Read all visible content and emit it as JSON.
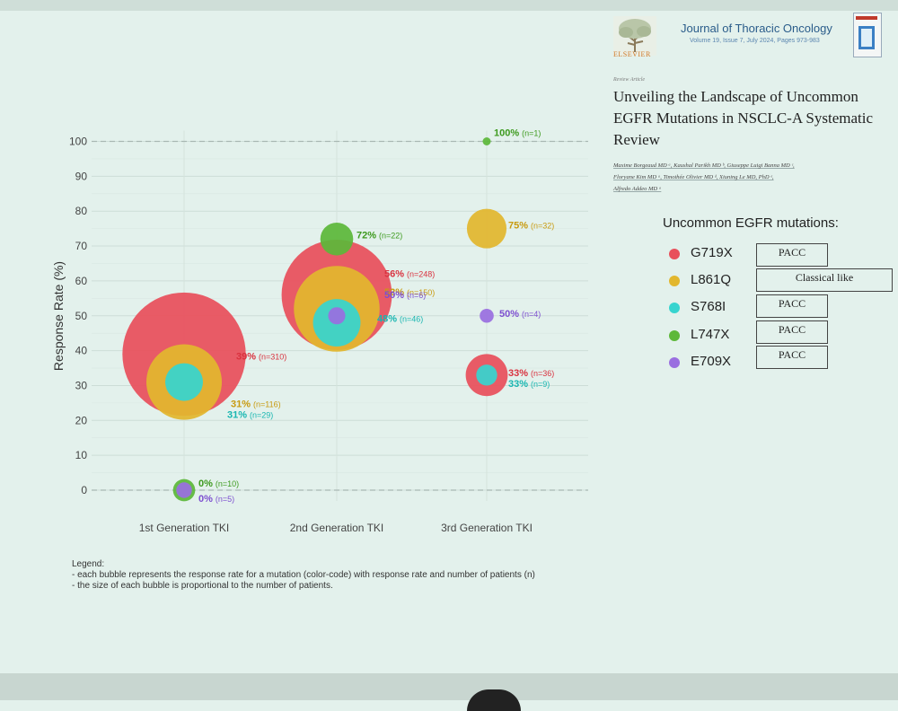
{
  "journal": {
    "logo_icon": "elsevier-tree-icon",
    "publisher": "ELSEVIER",
    "name": "Journal of Thoracic Oncology",
    "volume_line": "Volume 19, Issue 7, July 2024, Pages 973-983"
  },
  "article": {
    "type": "Review Article",
    "title": "Unveiling the Landscape of Uncommon EGFR Mutations in NSCLC-A Systematic Review",
    "authors_line1": "Maxime Borgeaud MD ᵃ, Kaushal Parikh MD ᵇ, Giuseppe Luigi Banna MD ᶜ,",
    "authors_line2": "Floryane Kim MD ᵃ, Timothée Olivier MD ᵈ, Xiuning Le MD, PhD ᵉ,",
    "authors_line3": "Alfredo Addeo MD ᵃ"
  },
  "mutation_key": {
    "title": "Uncommon EGFR mutations:",
    "items": [
      {
        "name": "G719X",
        "color": "#e8505b",
        "class": "PACC"
      },
      {
        "name": "L861Q",
        "color": "#e2b72e",
        "class": "Classical like"
      },
      {
        "name": "S768I",
        "color": "#37d4cf",
        "class": "PACC"
      },
      {
        "name": "L747X",
        "color": "#5db83a",
        "class": "PACC"
      },
      {
        "name": "E709X",
        "color": "#9a6fe0",
        "class": "PACC"
      }
    ]
  },
  "legend_note": {
    "line1": "Legend:",
    "line2": "- each bubble represents the response rate for a mutation (color-code) with response rate and number of patients (n)",
    "line3": "- the size of each bubble is proportional to the number of patients."
  },
  "chart_data": {
    "type": "scatter",
    "subtype": "bubble",
    "ylabel": "Response Rate (%)",
    "xlabel": "",
    "categories": [
      "1st Generation TKI",
      "2nd Generation TKI",
      "3rd Generation TKI"
    ],
    "ylim": [
      0,
      100
    ],
    "yticks": [
      "0",
      "10",
      "20",
      "30",
      "40",
      "50",
      "60",
      "70",
      "80",
      "90",
      "100"
    ],
    "grid": true,
    "bubble_size": "proportional to number of patients",
    "series": [
      {
        "mutation": "G719X",
        "color": "#e8505b",
        "points": [
          {
            "category": "1st Generation TKI",
            "y": 39,
            "n": 310,
            "label": "39%",
            "n_label": "(n=310)"
          },
          {
            "category": "2nd Generation TKI",
            "y": 56,
            "n": 248,
            "label": "56%",
            "n_label": "(n=248)"
          },
          {
            "category": "3rd Generation TKI",
            "y": 33,
            "n": 36,
            "label": "33%",
            "n_label": "(n=36)"
          }
        ]
      },
      {
        "mutation": "L861Q",
        "color": "#e2b72e",
        "points": [
          {
            "category": "1st Generation TKI",
            "y": 31,
            "n": 116,
            "label": "31%",
            "n_label": "(n=116)"
          },
          {
            "category": "2nd Generation TKI",
            "y": 52,
            "n": 150,
            "label": "52%",
            "n_label": "(n=150)"
          },
          {
            "category": "3rd Generation TKI",
            "y": 75,
            "n": 32,
            "label": "75%",
            "n_label": "(n=32)"
          }
        ]
      },
      {
        "mutation": "S768I",
        "color": "#37d4cf",
        "points": [
          {
            "category": "1st Generation TKI",
            "y": 31,
            "n": 29,
            "label": "31%",
            "n_label": "(n=29)"
          },
          {
            "category": "2nd Generation TKI",
            "y": 48,
            "n": 46,
            "label": "48%",
            "n_label": "(n=46)"
          },
          {
            "category": "3rd Generation TKI",
            "y": 33,
            "n": 9,
            "label": "33%",
            "n_label": "(n=9)"
          }
        ]
      },
      {
        "mutation": "L747X",
        "color": "#5db83a",
        "points": [
          {
            "category": "1st Generation TKI",
            "y": 0,
            "n": 10,
            "label": "0%",
            "n_label": "(n=10)"
          },
          {
            "category": "2nd Generation TKI",
            "y": 72,
            "n": 22,
            "label": "72%",
            "n_label": "(n=22)"
          },
          {
            "category": "3rd Generation TKI",
            "y": 100,
            "n": 1,
            "label": "100%",
            "n_label": "(n=1)"
          }
        ]
      },
      {
        "mutation": "E709X",
        "color": "#9a6fe0",
        "points": [
          {
            "category": "1st Generation TKI",
            "y": 0,
            "n": 5,
            "label": "0%",
            "n_label": "(n=5)"
          },
          {
            "category": "2nd Generation TKI",
            "y": 50,
            "n": 6,
            "label": "50%",
            "n_label": "(n=6)"
          },
          {
            "category": "3rd Generation TKI",
            "y": 50,
            "n": 4,
            "label": "50%",
            "n_label": "(n=4)"
          }
        ]
      }
    ]
  }
}
